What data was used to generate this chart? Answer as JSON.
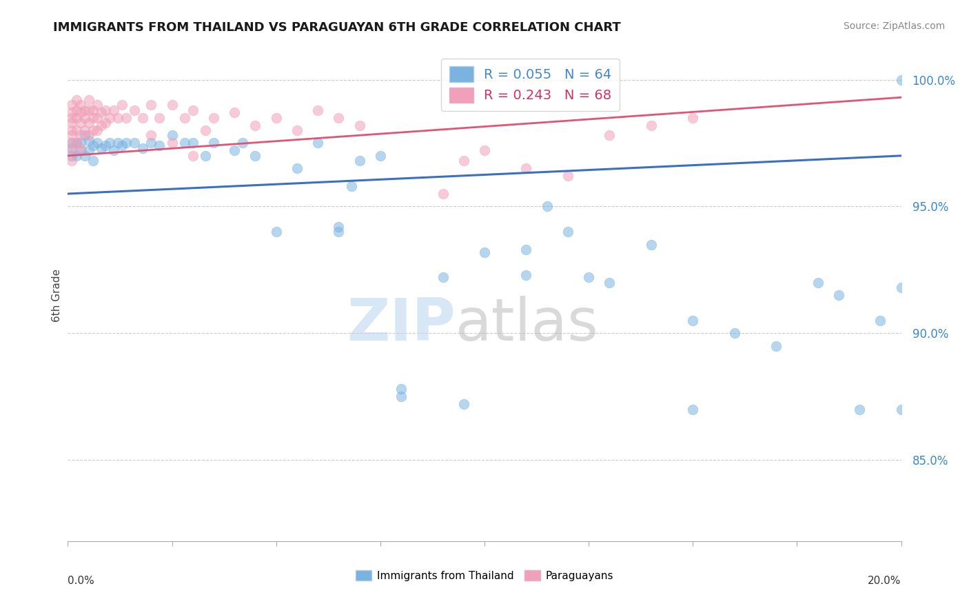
{
  "title": "IMMIGRANTS FROM THAILAND VS PARAGUAYAN 6TH GRADE CORRELATION CHART",
  "source": "Source: ZipAtlas.com",
  "ylabel": "6th Grade",
  "xlim": [
    0.0,
    0.2
  ],
  "ylim": [
    0.818,
    1.012
  ],
  "yticks": [
    0.85,
    0.9,
    0.95,
    1.0
  ],
  "ytick_labels": [
    "85.0%",
    "90.0%",
    "95.0%",
    "100.0%"
  ],
  "xticks": [
    0.0,
    0.025,
    0.05,
    0.075,
    0.1,
    0.125,
    0.15,
    0.175,
    0.2
  ],
  "blue_color": "#7ab3e0",
  "pink_color": "#f0a0b8",
  "blue_line_color": "#3a6fc4",
  "pink_line_color": "#e05575",
  "legend_blue_label": "R = 0.055   N = 64",
  "legend_pink_label": "R = 0.243   N = 68",
  "legend_blue_color": "#4488cc",
  "legend_pink_color": "#cc3366",
  "bottom_legend_blue": "Immigrants from Thailand",
  "bottom_legend_pink": "Paraguayans",
  "blue_line_y0": 0.955,
  "blue_line_y1": 0.97,
  "pink_line_y0": 0.97,
  "pink_line_y1": 0.993,
  "blue_x": [
    0.001,
    0.001,
    0.001,
    0.002,
    0.002,
    0.003,
    0.003,
    0.004,
    0.004,
    0.005,
    0.005,
    0.006,
    0.006,
    0.007,
    0.008,
    0.009,
    0.01,
    0.011,
    0.012,
    0.013,
    0.014,
    0.016,
    0.018,
    0.02,
    0.022,
    0.025,
    0.028,
    0.03,
    0.033,
    0.035,
    0.04,
    0.042,
    0.045,
    0.05,
    0.055,
    0.06,
    0.065,
    0.068,
    0.07,
    0.075,
    0.08,
    0.09,
    0.095,
    0.1,
    0.11,
    0.115,
    0.12,
    0.125,
    0.13,
    0.14,
    0.15,
    0.16,
    0.17,
    0.18,
    0.185,
    0.19,
    0.195,
    0.2,
    0.2,
    0.2,
    0.065,
    0.08,
    0.11,
    0.15
  ],
  "blue_y": [
    0.975,
    0.973,
    0.97,
    0.975,
    0.97,
    0.975,
    0.972,
    0.978,
    0.97,
    0.976,
    0.972,
    0.974,
    0.968,
    0.975,
    0.973,
    0.974,
    0.975,
    0.972,
    0.975,
    0.974,
    0.975,
    0.975,
    0.973,
    0.975,
    0.974,
    0.978,
    0.975,
    0.975,
    0.97,
    0.975,
    0.972,
    0.975,
    0.97,
    0.94,
    0.965,
    0.975,
    0.942,
    0.958,
    0.968,
    0.97,
    0.875,
    0.922,
    0.872,
    0.932,
    0.923,
    0.95,
    0.94,
    0.922,
    0.92,
    0.935,
    0.87,
    0.9,
    0.895,
    0.92,
    0.915,
    0.87,
    0.905,
    1.0,
    0.918,
    0.87,
    0.94,
    0.878,
    0.933,
    0.905
  ],
  "pink_x": [
    0.001,
    0.001,
    0.001,
    0.001,
    0.001,
    0.001,
    0.001,
    0.001,
    0.001,
    0.002,
    0.002,
    0.002,
    0.002,
    0.002,
    0.003,
    0.003,
    0.003,
    0.003,
    0.003,
    0.004,
    0.004,
    0.004,
    0.005,
    0.005,
    0.005,
    0.005,
    0.006,
    0.006,
    0.006,
    0.007,
    0.007,
    0.007,
    0.008,
    0.008,
    0.009,
    0.009,
    0.01,
    0.011,
    0.012,
    0.013,
    0.014,
    0.016,
    0.018,
    0.02,
    0.022,
    0.025,
    0.028,
    0.03,
    0.033,
    0.035,
    0.04,
    0.045,
    0.05,
    0.055,
    0.06,
    0.065,
    0.07,
    0.095,
    0.1,
    0.11,
    0.12,
    0.13,
    0.14,
    0.15,
    0.02,
    0.025,
    0.03,
    0.09
  ],
  "pink_y": [
    0.99,
    0.987,
    0.985,
    0.983,
    0.98,
    0.978,
    0.975,
    0.972,
    0.968,
    0.992,
    0.988,
    0.985,
    0.98,
    0.975,
    0.99,
    0.987,
    0.983,
    0.978,
    0.973,
    0.988,
    0.985,
    0.98,
    0.992,
    0.988,
    0.983,
    0.978,
    0.988,
    0.985,
    0.98,
    0.99,
    0.985,
    0.98,
    0.987,
    0.982,
    0.988,
    0.983,
    0.985,
    0.988,
    0.985,
    0.99,
    0.985,
    0.988,
    0.985,
    0.99,
    0.985,
    0.99,
    0.985,
    0.988,
    0.98,
    0.985,
    0.987,
    0.982,
    0.985,
    0.98,
    0.988,
    0.985,
    0.982,
    0.968,
    0.972,
    0.965,
    0.962,
    0.978,
    0.982,
    0.985,
    0.978,
    0.975,
    0.97,
    0.955
  ]
}
